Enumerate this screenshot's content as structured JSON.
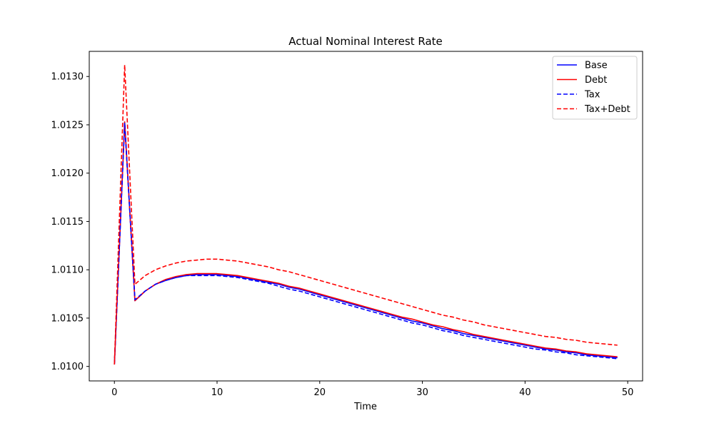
{
  "chart_data": {
    "type": "line",
    "title": "Actual Nominal Interest Rate",
    "xlabel": "Time",
    "ylabel": "",
    "xlim": [
      -2.45,
      51.45
    ],
    "ylim": [
      1.00985,
      1.01326
    ],
    "xticks": [
      0,
      10,
      20,
      30,
      40,
      50
    ],
    "yticks": [
      1.01,
      1.0105,
      1.011,
      1.0115,
      1.012,
      1.0125,
      1.013
    ],
    "ytick_decimals": 4,
    "grid": false,
    "legend_position": "top-right",
    "x": [
      0,
      1,
      2,
      3,
      4,
      5,
      6,
      7,
      8,
      9,
      10,
      11,
      12,
      13,
      14,
      15,
      16,
      17,
      18,
      19,
      20,
      21,
      22,
      23,
      24,
      25,
      26,
      27,
      28,
      29,
      30,
      31,
      32,
      33,
      34,
      35,
      36,
      37,
      38,
      39,
      40,
      41,
      42,
      43,
      44,
      45,
      46,
      47,
      48,
      49
    ],
    "series": [
      {
        "name": "Base",
        "color": "#0000ff",
        "dash": "solid",
        "values": [
          1.01002,
          1.01253,
          1.01068,
          1.01078,
          1.01085,
          1.01089,
          1.01092,
          1.01094,
          1.01095,
          1.01095,
          1.01095,
          1.01094,
          1.01093,
          1.01091,
          1.01089,
          1.01087,
          1.01085,
          1.01082,
          1.0108,
          1.01077,
          1.01074,
          1.01071,
          1.01068,
          1.01065,
          1.01062,
          1.01059,
          1.01056,
          1.01053,
          1.0105,
          1.01047,
          1.01045,
          1.01042,
          1.01039,
          1.01037,
          1.01034,
          1.01032,
          1.0103,
          1.01028,
          1.01026,
          1.01024,
          1.01022,
          1.0102,
          1.01018,
          1.01017,
          1.01015,
          1.01014,
          1.01012,
          1.01011,
          1.0101,
          1.01009
        ]
      },
      {
        "name": "Debt",
        "color": "#ff0000",
        "dash": "solid",
        "values": [
          1.01002,
          1.01253,
          1.01068,
          1.01078,
          1.01085,
          1.0109,
          1.01093,
          1.01095,
          1.01096,
          1.01096,
          1.01096,
          1.01095,
          1.01094,
          1.01092,
          1.0109,
          1.01088,
          1.01086,
          1.01083,
          1.01081,
          1.01078,
          1.01075,
          1.01072,
          1.01069,
          1.01066,
          1.01063,
          1.0106,
          1.01057,
          1.01054,
          1.01051,
          1.01049,
          1.01046,
          1.01043,
          1.01041,
          1.01038,
          1.01036,
          1.01033,
          1.01031,
          1.01029,
          1.01027,
          1.01025,
          1.01023,
          1.01021,
          1.01019,
          1.01018,
          1.01016,
          1.01015,
          1.01013,
          1.01012,
          1.01011,
          1.0101
        ]
      },
      {
        "name": "Tax",
        "color": "#0000ff",
        "dash": "dashed",
        "values": [
          1.01002,
          1.01252,
          1.01069,
          1.01078,
          1.01085,
          1.01089,
          1.01092,
          1.01094,
          1.01094,
          1.01094,
          1.01094,
          1.01093,
          1.01092,
          1.0109,
          1.01088,
          1.01086,
          1.01083,
          1.0108,
          1.01078,
          1.01075,
          1.01072,
          1.01069,
          1.01066,
          1.01063,
          1.0106,
          1.01057,
          1.01054,
          1.01051,
          1.01048,
          1.01045,
          1.01043,
          1.0104,
          1.01037,
          1.01035,
          1.01032,
          1.0103,
          1.01028,
          1.01026,
          1.01024,
          1.01022,
          1.0102,
          1.01018,
          1.01017,
          1.01015,
          1.01014,
          1.01012,
          1.01011,
          1.0101,
          1.01009,
          1.01008
        ]
      },
      {
        "name": "Tax+Debt",
        "color": "#ff0000",
        "dash": "dashed",
        "values": [
          1.01002,
          1.01312,
          1.01085,
          1.01094,
          1.011,
          1.01104,
          1.01107,
          1.01109,
          1.0111,
          1.01111,
          1.01111,
          1.0111,
          1.01109,
          1.01107,
          1.01105,
          1.01103,
          1.011,
          1.01098,
          1.01095,
          1.01092,
          1.01089,
          1.01086,
          1.01083,
          1.0108,
          1.01077,
          1.01074,
          1.01071,
          1.01068,
          1.01065,
          1.01062,
          1.01059,
          1.01056,
          1.01053,
          1.01051,
          1.01048,
          1.01046,
          1.01043,
          1.01041,
          1.01039,
          1.01037,
          1.01035,
          1.01033,
          1.01031,
          1.0103,
          1.01028,
          1.01027,
          1.01025,
          1.01024,
          1.01023,
          1.01022
        ]
      }
    ]
  }
}
